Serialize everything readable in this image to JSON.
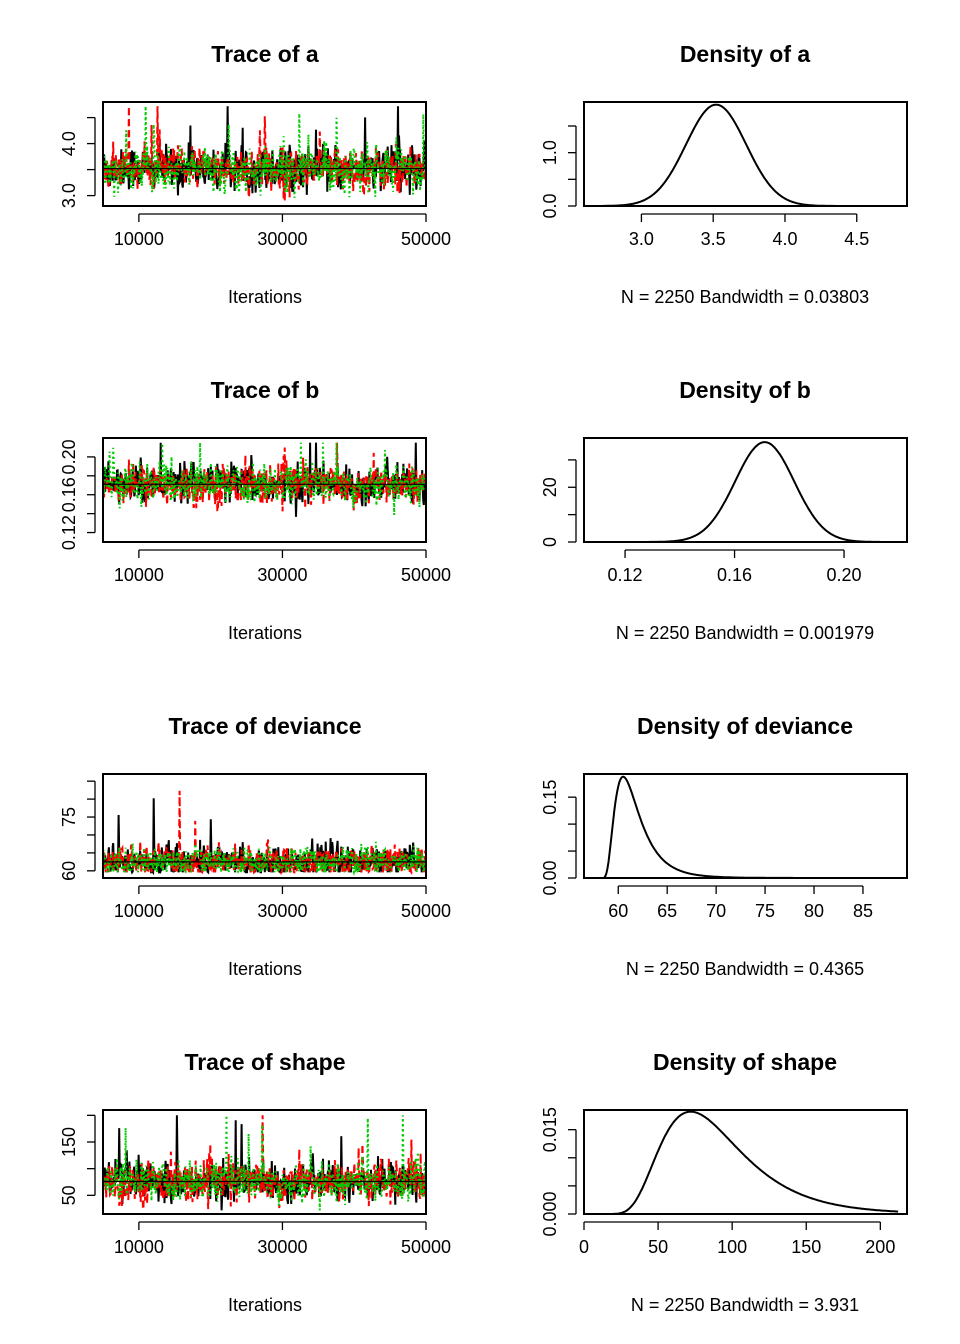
{
  "chart_data": [
    {
      "type": "line",
      "title": "Trace of a",
      "xlabel": "Iterations",
      "ylabel": "",
      "xlim": [
        5000,
        50000
      ],
      "ylim": [
        2.8,
        4.8
      ],
      "xticks": [
        10000,
        30000,
        50000
      ],
      "xtick_labels": [
        "10000",
        "30000",
        "50000"
      ],
      "yticks": [
        3.0,
        3.5,
        4.0,
        4.5
      ],
      "ytick_labels": [
        "3.0",
        "",
        "4.0",
        ""
      ],
      "grid": false,
      "chains": 3,
      "colors": [
        "#000000",
        "#ff0000",
        "#00cd00"
      ],
      "trace_center": 3.52,
      "trace_spread": 0.22,
      "trace_min": 2.8,
      "trace_max": 4.72
    },
    {
      "type": "line",
      "title": "Density of a",
      "xlabel": "N = 2250   Bandwidth = 0.03803",
      "ylabel": "",
      "xlim": [
        2.6,
        4.85
      ],
      "ylim": [
        0.0,
        1.95
      ],
      "xticks": [
        3.0,
        3.5,
        4.0,
        4.5
      ],
      "xtick_labels": [
        "3.0",
        "3.5",
        "4.0",
        "4.5"
      ],
      "yticks": [
        0.0,
        0.5,
        1.0,
        1.5
      ],
      "ytick_labels": [
        "0.0",
        "",
        "1.0",
        ""
      ],
      "grid": false,
      "baseline": [
        2.73,
        4.82
      ],
      "density_peak_x": 3.52,
      "density_peak_y": 1.9,
      "density_sd": 0.21
    },
    {
      "type": "line",
      "title": "Trace of b",
      "xlabel": "Iterations",
      "ylabel": "",
      "xlim": [
        5000,
        50000
      ],
      "ylim": [
        0.11,
        0.22
      ],
      "xticks": [
        10000,
        30000,
        50000
      ],
      "xtick_labels": [
        "10000",
        "30000",
        "50000"
      ],
      "yticks": [
        0.12,
        0.14,
        0.16,
        0.18,
        0.2
      ],
      "ytick_labels": [
        "0.12",
        "",
        "0.16",
        "",
        "0.20"
      ],
      "grid": false,
      "chains": 3,
      "colors": [
        "#000000",
        "#ff0000",
        "#00cd00"
      ],
      "trace_center": 0.171,
      "trace_spread": 0.011,
      "trace_min": 0.112,
      "trace_max": 0.215
    },
    {
      "type": "line",
      "title": "Density of b",
      "xlabel": "N = 2250   Bandwidth = 0.001979",
      "ylabel": "",
      "xlim": [
        0.105,
        0.223
      ],
      "ylim": [
        0,
        38
      ],
      "xticks": [
        0.12,
        0.16,
        0.2
      ],
      "xtick_labels": [
        "0.12",
        "0.16",
        "0.20"
      ],
      "yticks": [
        0,
        10,
        20,
        30
      ],
      "ytick_labels": [
        "0",
        "",
        "20",
        ""
      ],
      "grid": false,
      "baseline": [
        0.11,
        0.22
      ],
      "density_peak_x": 0.171,
      "density_peak_y": 36.5,
      "density_sd": 0.0108
    },
    {
      "type": "line",
      "title": "Trace of deviance",
      "xlabel": "Iterations",
      "ylabel": "",
      "xlim": [
        5000,
        50000
      ],
      "ylim": [
        58,
        87
      ],
      "xticks": [
        10000,
        30000,
        50000
      ],
      "xtick_labels": [
        "10000",
        "30000",
        "50000"
      ],
      "yticks": [
        60,
        65,
        70,
        75,
        80,
        85
      ],
      "ytick_labels": [
        "60",
        "",
        "",
        "75",
        "",
        ""
      ],
      "grid": false,
      "chains": 3,
      "colors": [
        "#000000",
        "#ff0000",
        "#00cd00"
      ],
      "trace_center": 62.5,
      "trace_spread": 2.2,
      "trace_min": 59.6,
      "trace_max": 87
    },
    {
      "type": "line",
      "title": "Density of deviance",
      "xlabel": "N = 2250   Bandwidth = 0.4365",
      "ylabel": "",
      "xlim": [
        56.5,
        89.5
      ],
      "ylim": [
        0.0,
        0.193
      ],
      "xticks": [
        60,
        65,
        70,
        75,
        80,
        85
      ],
      "xtick_labels": [
        "60",
        "65",
        "70",
        "75",
        "80",
        "85"
      ],
      "yticks": [
        0.0,
        0.05,
        0.1,
        0.15
      ],
      "ytick_labels": [
        "0.00",
        "",
        "",
        "0.15"
      ],
      "grid": false,
      "baseline": [
        58.2,
        88.2
      ],
      "density_peak_x": 60.5,
      "density_peak_y": 0.188,
      "density_skew": "right"
    },
    {
      "type": "line",
      "title": "Trace of shape",
      "xlabel": "Iterations",
      "ylabel": "",
      "xlim": [
        5000,
        50000
      ],
      "ylim": [
        15,
        210
      ],
      "xticks": [
        10000,
        30000,
        50000
      ],
      "xtick_labels": [
        "10000",
        "30000",
        "50000"
      ],
      "yticks": [
        50,
        100,
        150,
        200
      ],
      "ytick_labels": [
        "50",
        "",
        "150",
        ""
      ],
      "grid": false,
      "chains": 3,
      "colors": [
        "#000000",
        "#ff0000",
        "#00cd00"
      ],
      "trace_center": 76,
      "trace_spread": 20,
      "trace_min": 22,
      "trace_max": 200
    },
    {
      "type": "line",
      "title": "Density of shape",
      "xlabel": "N = 2250   Bandwidth = 3.931",
      "ylabel": "",
      "xlim": [
        0,
        218
      ],
      "ylim": [
        0.0,
        0.0185
      ],
      "xticks": [
        0,
        50,
        100,
        150,
        200
      ],
      "xtick_labels": [
        "0",
        "50",
        "100",
        "150",
        "200"
      ],
      "yticks": [
        0.0,
        0.005,
        0.01,
        0.015
      ],
      "ytick_labels": [
        "0.000",
        "",
        "",
        "0.015"
      ],
      "grid": false,
      "baseline": [
        7,
        212
      ],
      "density_peak_x": 72,
      "density_peak_y": 0.0182,
      "density_skew": "right"
    }
  ]
}
